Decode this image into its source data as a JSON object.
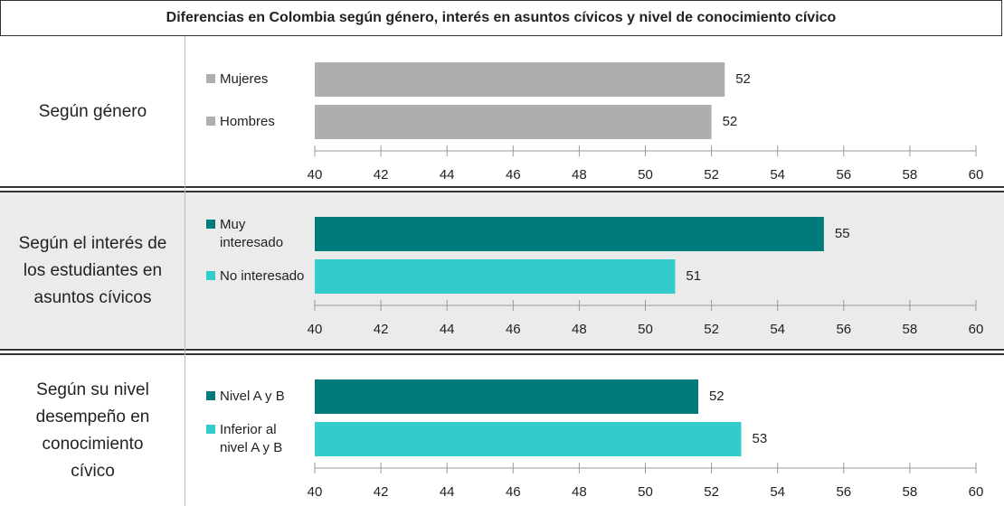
{
  "title": "Diferencias en Colombia según género, interés en asuntos cívicos y nivel de conocimiento cívico",
  "chart_data": [
    {
      "type": "bar",
      "row_label": "Según género",
      "categories": [
        "Mujeres",
        "Hombres"
      ],
      "values": [
        52.4,
        52.0
      ],
      "value_labels": [
        "52",
        "52"
      ],
      "colors": [
        "#aeaeb0",
        "#aeaeb0"
      ],
      "xlim": [
        40,
        60
      ],
      "xticks": [
        40,
        42,
        44,
        46,
        48,
        50,
        52,
        54,
        56,
        58,
        60
      ]
    },
    {
      "type": "bar",
      "row_label": "Según el interés de los estudiantes en asuntos cívicos",
      "categories": [
        "Muy interesado",
        "No interesado"
      ],
      "values": [
        55.4,
        50.9
      ],
      "value_labels": [
        "55",
        "51"
      ],
      "colors": [
        "#007b7b",
        "#33cccc"
      ],
      "xlim": [
        40,
        60
      ],
      "xticks": [
        40,
        42,
        44,
        46,
        48,
        50,
        52,
        54,
        56,
        58,
        60
      ]
    },
    {
      "type": "bar",
      "row_label": "Según su nivel desempeño en conocimiento cívico",
      "categories": [
        "Nivel A y B",
        "Inferior al nivel A y B"
      ],
      "values": [
        51.6,
        52.9
      ],
      "value_labels": [
        "52",
        "53"
      ],
      "colors": [
        "#007b7b",
        "#33cccc"
      ],
      "xlim": [
        40,
        60
      ],
      "xticks": [
        40,
        42,
        44,
        46,
        48,
        50,
        52,
        54,
        56,
        58,
        60
      ]
    }
  ]
}
